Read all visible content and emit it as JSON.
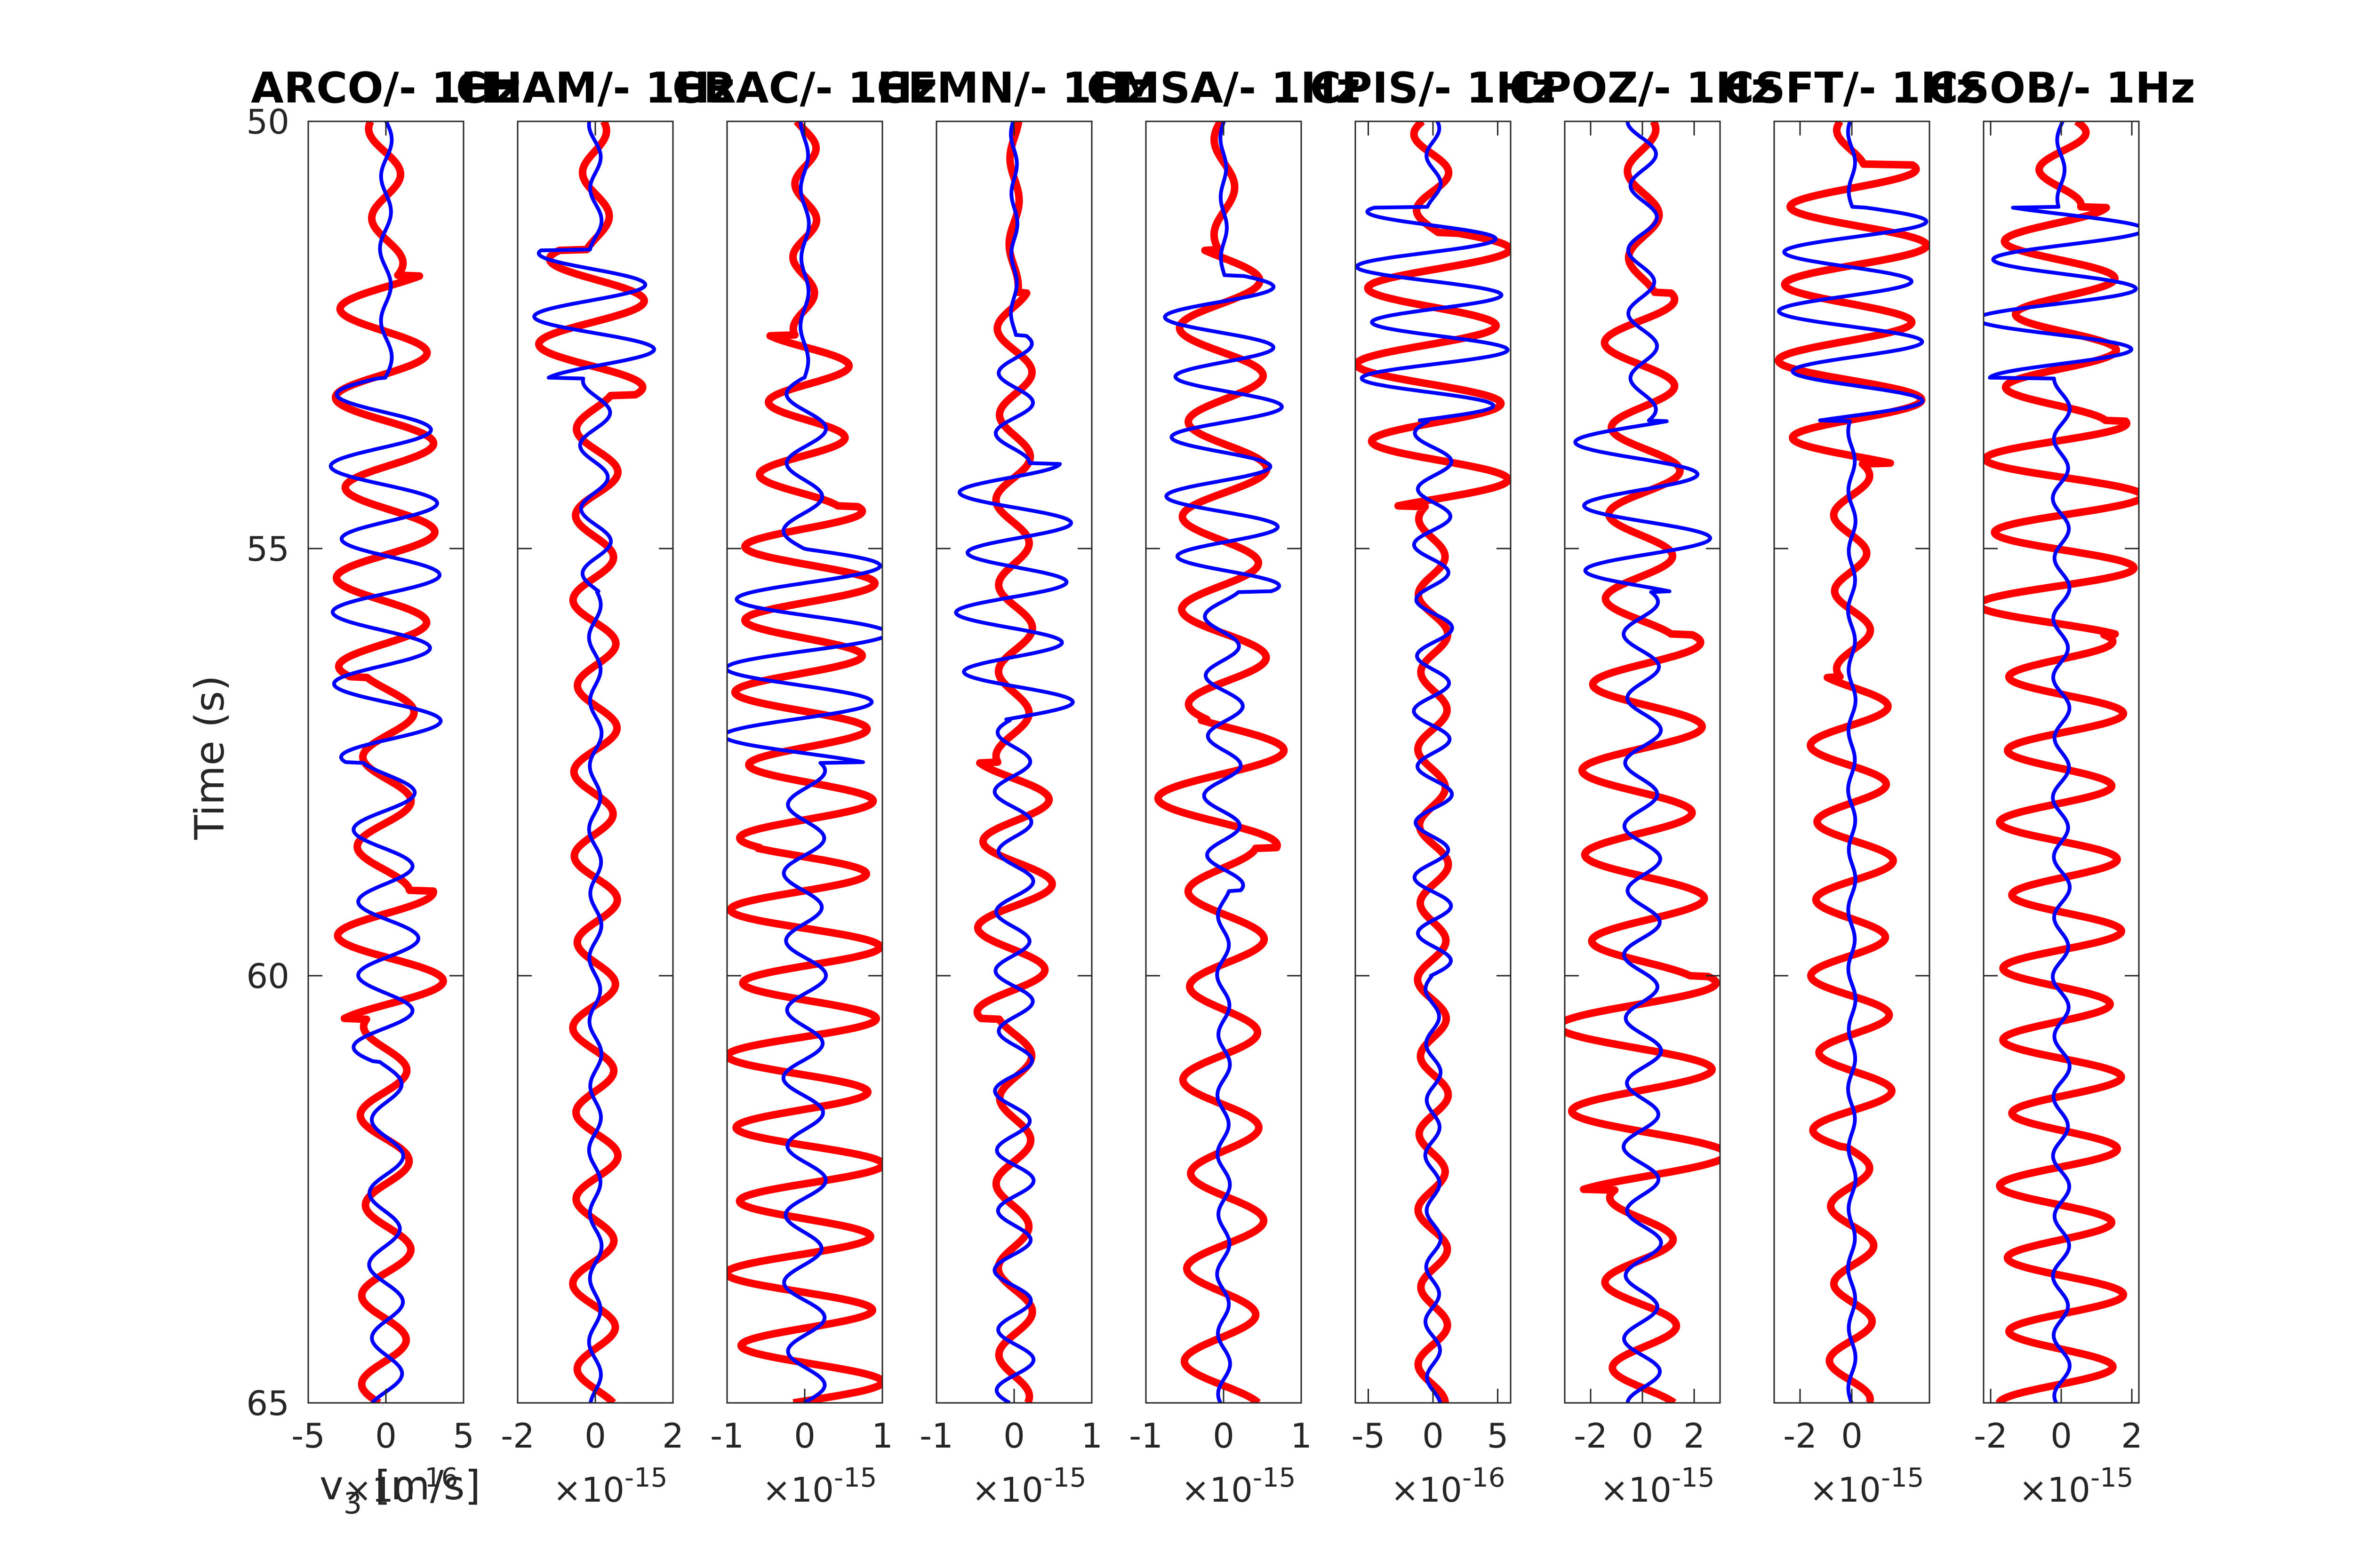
{
  "chart_data": {
    "type": "line",
    "ylabel": "Time (s)",
    "xlabel_first_panel": "v_3 [m/s]",
    "ylim": [
      50,
      65
    ],
    "y_reversed": true,
    "yticks": [
      50,
      55,
      60,
      65
    ],
    "series_colors": {
      "red": "#ff0000",
      "blue": "#0000ff"
    },
    "panels": [
      {
        "title": "ARCO/- 1Hz",
        "xlim": [
          -5,
          5
        ],
        "xticks": [
          "-5",
          "0",
          "5"
        ],
        "multiplier": "×10^-16",
        "red_amp": 3.3,
        "blue_amp": 3.4,
        "red_segments": [
          [
            50.0,
            51.8,
            0.3
          ],
          [
            51.8,
            56.5,
            0.9
          ],
          [
            56.5,
            59.0,
            0.5
          ],
          [
            59.0,
            60.5,
            1.0
          ],
          [
            60.5,
            65.0,
            0.45
          ]
        ],
        "blue_segments": [
          [
            50.0,
            53.0,
            0.1
          ],
          [
            53.0,
            57.5,
            0.95
          ],
          [
            57.5,
            61.0,
            0.55
          ],
          [
            61.0,
            65.0,
            0.3
          ]
        ],
        "red_period": 1.05,
        "blue_period": 0.85,
        "red_phase": 0.3,
        "blue_phase": 1.1
      },
      {
        "title": "CHAM/- 1Hz",
        "xlim": [
          -2,
          2
        ],
        "xticks": [
          "-2",
          "0",
          "2"
        ],
        "multiplier": "×10^-15",
        "red_amp": 1.3,
        "blue_amp": 1.45,
        "red_segments": [
          [
            50.0,
            51.5,
            0.25
          ],
          [
            51.5,
            53.2,
            1.0
          ],
          [
            53.2,
            65.0,
            0.4
          ]
        ],
        "blue_segments": [
          [
            50.0,
            51.5,
            0.1
          ],
          [
            51.5,
            53.0,
            1.0
          ],
          [
            53.0,
            55.5,
            0.25
          ],
          [
            55.5,
            65.0,
            0.1
          ]
        ],
        "red_period": 1.0,
        "blue_period": 0.75,
        "red_phase": 0.9,
        "blue_phase": 0.2
      },
      {
        "title": "CRAC/- 1Hz",
        "xlim": [
          -1,
          1
        ],
        "xticks": [
          "-1",
          "0",
          "1"
        ],
        "multiplier": "×10^-15",
        "red_amp": 0.95,
        "blue_amp": 0.98,
        "red_segments": [
          [
            50.0,
            52.5,
            0.15
          ],
          [
            52.5,
            54.5,
            0.55
          ],
          [
            54.5,
            58.5,
            0.85
          ],
          [
            58.5,
            65.0,
            0.95
          ]
        ],
        "blue_segments": [
          [
            50.0,
            53.0,
            0.05
          ],
          [
            53.0,
            55.0,
            0.25
          ],
          [
            55.0,
            57.5,
            1.0
          ],
          [
            57.5,
            65.0,
            0.25
          ]
        ],
        "red_period": 0.85,
        "blue_period": 0.8,
        "red_phase": 0.4,
        "blue_phase": 1.6
      },
      {
        "title": "CEMN/- 1Hz",
        "xlim": [
          -1,
          1
        ],
        "xticks": [
          "-1",
          "0",
          "1"
        ],
        "multiplier": "×10^-15",
        "red_amp": 0.6,
        "blue_amp": 0.75,
        "red_segments": [
          [
            50.0,
            52.0,
            0.1
          ],
          [
            52.0,
            57.5,
            0.35
          ],
          [
            57.5,
            60.5,
            0.75
          ],
          [
            60.5,
            65.0,
            0.35
          ]
        ],
        "blue_segments": [
          [
            50.0,
            52.5,
            0.05
          ],
          [
            52.5,
            54.0,
            0.3
          ],
          [
            54.0,
            57.0,
            0.9
          ],
          [
            57.0,
            65.0,
            0.3
          ]
        ],
        "red_period": 1.0,
        "blue_period": 0.7,
        "red_phase": 2.0,
        "blue_phase": 0.7
      },
      {
        "title": "CMSA/- 1Hz",
        "xlim": [
          -1,
          1
        ],
        "xticks": [
          "-1",
          "0",
          "1"
        ],
        "multiplier": "×10^-15",
        "red_amp": 0.85,
        "blue_amp": 0.75,
        "red_segments": [
          [
            50.0,
            51.5,
            0.15
          ],
          [
            51.5,
            57.0,
            0.6
          ],
          [
            57.0,
            58.5,
            0.9
          ],
          [
            58.5,
            65.0,
            0.55
          ]
        ],
        "blue_segments": [
          [
            50.0,
            51.8,
            0.05
          ],
          [
            51.8,
            55.5,
            0.9
          ],
          [
            55.5,
            59.0,
            0.3
          ],
          [
            59.0,
            65.0,
            0.1
          ]
        ],
        "red_period": 1.1,
        "blue_period": 0.7,
        "red_phase": 0.6,
        "blue_phase": 0.3
      },
      {
        "title": "CPIS/- 1Hz",
        "xlim": [
          -6,
          6
        ],
        "xticks": [
          "-5",
          "0",
          "5"
        ],
        "multiplier": "×10^-16",
        "red_amp": 5.3,
        "blue_amp": 5.3,
        "red_segments": [
          [
            50.0,
            51.3,
            0.25
          ],
          [
            51.3,
            54.5,
            1.0
          ],
          [
            54.5,
            65.0,
            0.2
          ]
        ],
        "blue_segments": [
          [
            50.0,
            51.0,
            0.1
          ],
          [
            51.0,
            53.5,
            1.0
          ],
          [
            53.5,
            60.0,
            0.25
          ],
          [
            60.0,
            65.0,
            0.1
          ]
        ],
        "red_period": 0.9,
        "blue_period": 0.65,
        "red_phase": 0.2,
        "blue_phase": 1.3
      },
      {
        "title": "CPOZ/- 1Hz",
        "xlim": [
          -3,
          3
        ],
        "xticks": [
          "-2",
          "0",
          "2"
        ],
        "multiplier": "×10^-15",
        "red_amp": 2.9,
        "blue_amp": 2.6,
        "red_segments": [
          [
            50.0,
            52.0,
            0.2
          ],
          [
            52.0,
            56.0,
            0.45
          ],
          [
            56.0,
            60.0,
            0.75
          ],
          [
            60.0,
            62.5,
            1.0
          ],
          [
            62.5,
            65.0,
            0.45
          ]
        ],
        "blue_segments": [
          [
            50.0,
            53.5,
            0.2
          ],
          [
            53.5,
            55.5,
            0.9
          ],
          [
            55.5,
            65.0,
            0.25
          ]
        ],
        "red_period": 1.0,
        "blue_period": 0.75,
        "red_phase": 1.0,
        "blue_phase": 0.5
      },
      {
        "title": "CSFT/- 1Hz",
        "xlim": [
          -3,
          3
        ],
        "xticks": [
          "-2",
          "0"
        ],
        "multiplier": "×10^-15",
        "red_amp": 2.6,
        "blue_amp": 2.6,
        "red_segments": [
          [
            50.0,
            50.5,
            0.2
          ],
          [
            50.5,
            54.0,
            1.0
          ],
          [
            54.0,
            56.5,
            0.25
          ],
          [
            56.5,
            62.0,
            0.55
          ],
          [
            62.0,
            65.0,
            0.3
          ]
        ],
        "blue_segments": [
          [
            50.0,
            51.0,
            0.05
          ],
          [
            51.0,
            53.5,
            1.0
          ],
          [
            53.5,
            65.0,
            0.05
          ]
        ],
        "red_period": 0.9,
        "blue_period": 0.7,
        "red_phase": 0.5,
        "blue_phase": 0.9
      },
      {
        "title": "CSOB/- 1Hz",
        "xlim": [
          -2.2,
          2.2
        ],
        "xticks": [
          "-2",
          "0",
          "2"
        ],
        "multiplier": "×10^-15",
        "red_amp": 2.1,
        "blue_amp": 2.15,
        "red_segments": [
          [
            50.0,
            51.0,
            0.3
          ],
          [
            51.0,
            53.5,
            0.7
          ],
          [
            53.5,
            56.0,
            1.0
          ],
          [
            56.0,
            65.0,
            0.75
          ]
        ],
        "blue_segments": [
          [
            50.0,
            51.0,
            0.05
          ],
          [
            51.0,
            53.0,
            1.0
          ],
          [
            53.0,
            65.0,
            0.1
          ]
        ],
        "red_period": 0.85,
        "blue_period": 0.7,
        "red_phase": 1.7,
        "blue_phase": 0.1
      }
    ]
  }
}
